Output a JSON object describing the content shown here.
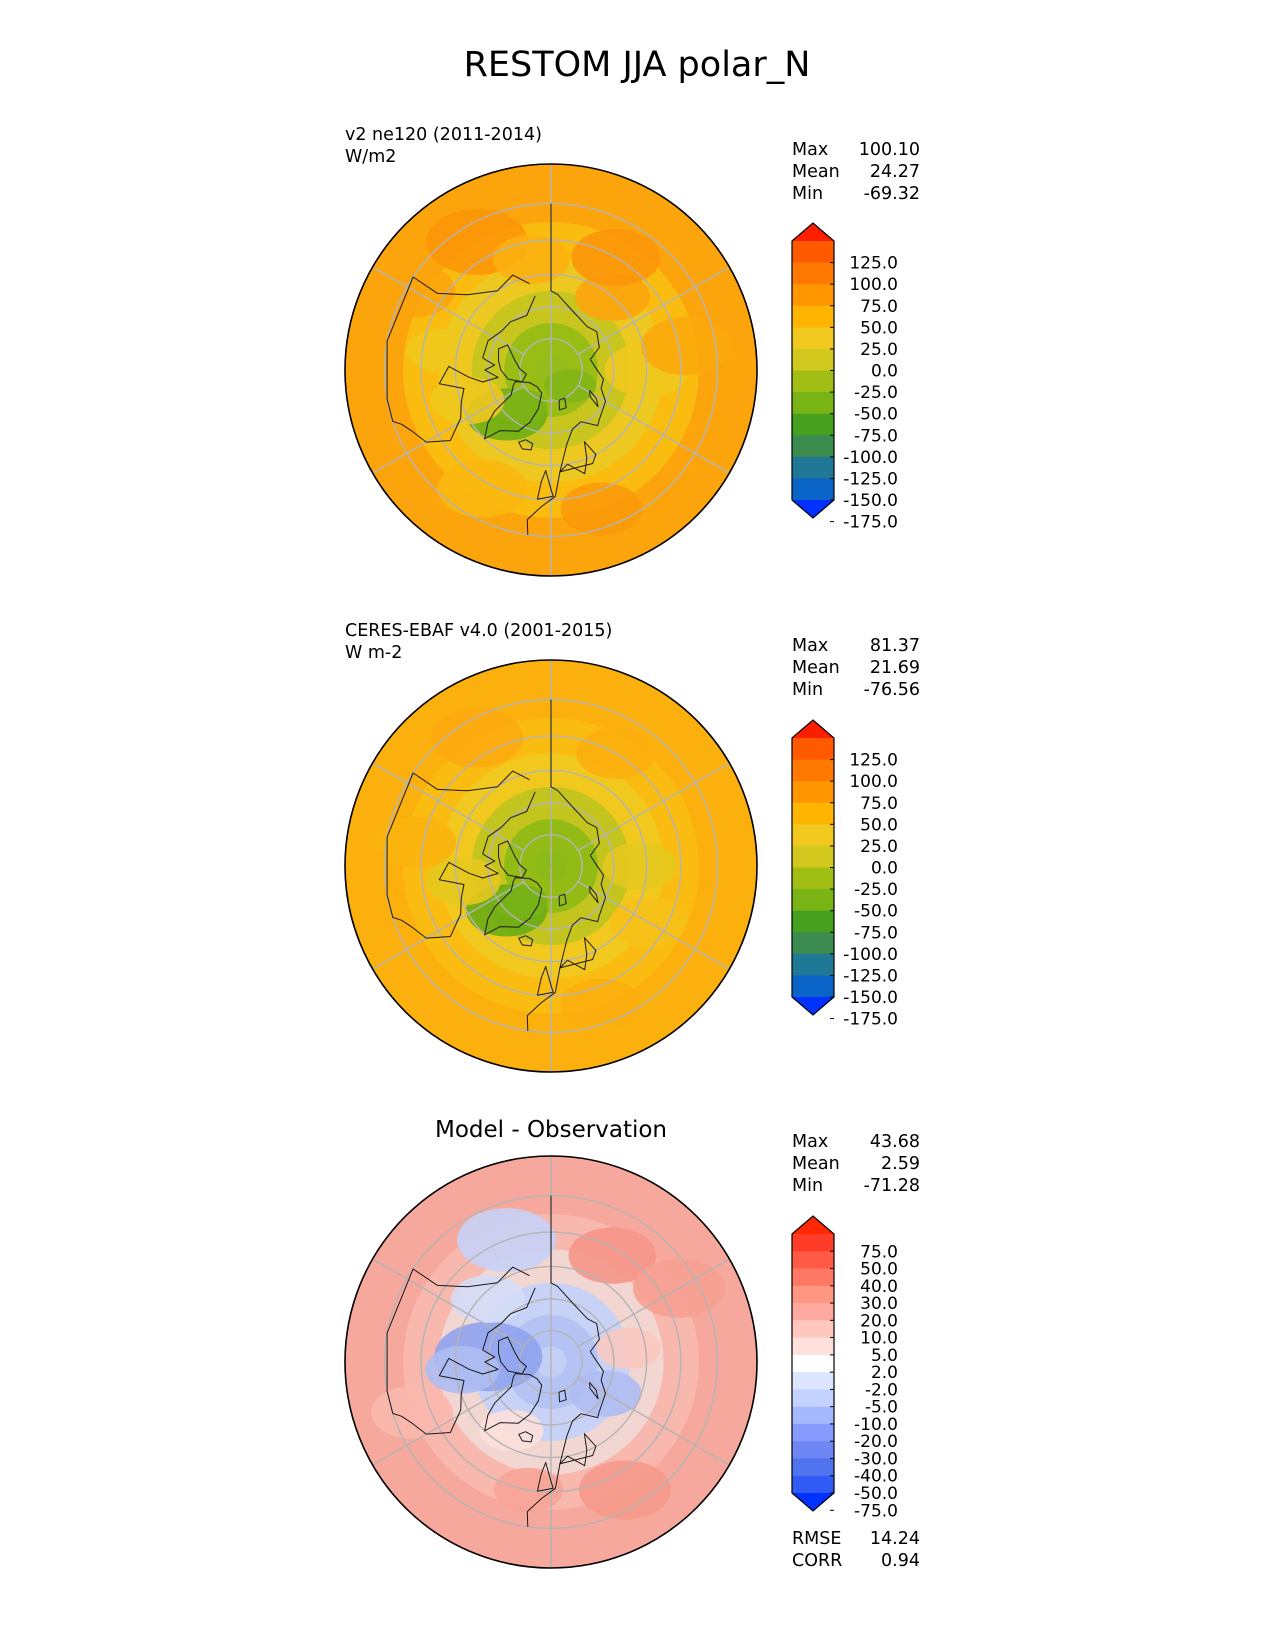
{
  "figure": {
    "title": "RESTOM JJA polar_N"
  },
  "chart_data": [
    {
      "type": "heatmap",
      "projection": "north-polar-stereographic",
      "label_line1": "v2 ne120 (2011-2014)",
      "label_line2": "W/m2",
      "subtitle": "",
      "stats": [
        {
          "name": "Max",
          "value": "100.10"
        },
        {
          "name": "Mean",
          "value": "24.27"
        },
        {
          "name": "Min",
          "value": "-69.32"
        }
      ],
      "bottom_stats": [],
      "colorbar": {
        "ticks": [
          "125.0",
          "100.0",
          "75.0",
          "50.0",
          "25.0",
          "0.0",
          "-25.0",
          "-50.0",
          "-75.0",
          "-100.0",
          "-125.0",
          "-150.0",
          "-175.0"
        ],
        "colors": [
          "#ff1e00",
          "#ff5a00",
          "#ff7800",
          "#ff9600",
          "#ffb400",
          "#f0c81e",
          "#d2c81e",
          "#a0be14",
          "#78b414",
          "#46a01e",
          "#3c8c50",
          "#1e7896",
          "#0a64c8",
          "#0032ff"
        ],
        "extend": "both"
      },
      "field": {
        "pole_color": "#94bc1c",
        "rings": [
          {
            "lat": 80,
            "color": "#9abd16"
          },
          {
            "lat": 70,
            "color": "#c8c61e"
          },
          {
            "lat": 60,
            "color": "#ecc820"
          },
          {
            "lat": 50,
            "color": "#fbbc10"
          },
          {
            "lat": 40,
            "color": "#fca40c"
          }
        ],
        "patches": [
          {
            "lon": -45,
            "lat": 70,
            "size": 9,
            "color": "#6eae14"
          },
          {
            "lon": -40,
            "lat": 75,
            "size": 6,
            "color": "#7db416"
          },
          {
            "lon": 50,
            "lat": 82,
            "size": 6,
            "color": "#82b616"
          },
          {
            "lon": -70,
            "lat": 62,
            "size": 8,
            "color": "#f0c81e"
          },
          {
            "lon": -100,
            "lat": 55,
            "size": 7,
            "color": "#f0c81e"
          },
          {
            "lon": 90,
            "lat": 60,
            "size": 9,
            "color": "#f0c81e"
          },
          {
            "lon": 140,
            "lat": 60,
            "size": 8,
            "color": "#fca40c"
          },
          {
            "lon": 150,
            "lat": 50,
            "size": 9,
            "color": "#fc960a"
          },
          {
            "lon": -150,
            "lat": 45,
            "size": 10,
            "color": "#fc9608"
          },
          {
            "lon": -170,
            "lat": 55,
            "size": 8,
            "color": "#fcb010"
          },
          {
            "lon": -30,
            "lat": 48,
            "size": 9,
            "color": "#fbb810"
          },
          {
            "lon": 20,
            "lat": 45,
            "size": 8,
            "color": "#fc9a0a"
          },
          {
            "lon": 100,
            "lat": 48,
            "size": 9,
            "color": "#fba80c"
          },
          {
            "lon": -120,
            "lat": 42,
            "size": 8,
            "color": "#fca40c"
          }
        ]
      }
    },
    {
      "type": "heatmap",
      "projection": "north-polar-stereographic",
      "label_line1": "CERES-EBAF v4.0 (2001-2015)",
      "label_line2": "W m-2",
      "subtitle": "",
      "stats": [
        {
          "name": "Max",
          "value": "81.37"
        },
        {
          "name": "Mean",
          "value": "21.69"
        },
        {
          "name": "Min",
          "value": "-76.56"
        }
      ],
      "bottom_stats": [],
      "colorbar": {
        "ticks": [
          "125.0",
          "100.0",
          "75.0",
          "50.0",
          "25.0",
          "0.0",
          "-25.0",
          "-50.0",
          "-75.0",
          "-100.0",
          "-125.0",
          "-150.0",
          "-175.0"
        ],
        "colors": [
          "#ff1e00",
          "#ff5a00",
          "#ff7800",
          "#ff9600",
          "#ffb400",
          "#f0c81e",
          "#d2c81e",
          "#a0be14",
          "#78b414",
          "#46a01e",
          "#3c8c50",
          "#1e7896",
          "#0a64c8",
          "#0032ff"
        ],
        "extend": "both"
      },
      "field": {
        "pole_color": "#8cba18",
        "rings": [
          {
            "lat": 80,
            "color": "#92bb16"
          },
          {
            "lat": 70,
            "color": "#c4c41e"
          },
          {
            "lat": 60,
            "color": "#f0c81e"
          },
          {
            "lat": 50,
            "color": "#fbbc12"
          },
          {
            "lat": 40,
            "color": "#fbb00e"
          }
        ],
        "patches": [
          {
            "lon": -45,
            "lat": 70,
            "size": 9,
            "color": "#6aac14"
          },
          {
            "lon": -40,
            "lat": 75,
            "size": 6,
            "color": "#78b216"
          },
          {
            "lon": -80,
            "lat": 62,
            "size": 8,
            "color": "#e6c81e"
          },
          {
            "lon": 90,
            "lat": 62,
            "size": 8,
            "color": "#e6c81e"
          },
          {
            "lon": 150,
            "lat": 50,
            "size": 8,
            "color": "#fcae0e"
          },
          {
            "lon": -150,
            "lat": 45,
            "size": 9,
            "color": "#fcaa0e"
          },
          {
            "lon": 20,
            "lat": 45,
            "size": 8,
            "color": "#fcae0e"
          },
          {
            "lon": -100,
            "lat": 48,
            "size": 8,
            "color": "#fbb40e"
          },
          {
            "lon": 60,
            "lat": 55,
            "size": 8,
            "color": "#f6c018"
          }
        ]
      }
    },
    {
      "type": "heatmap",
      "projection": "north-polar-stereographic",
      "label_line1": "",
      "label_line2": "",
      "subtitle": "Model - Observation",
      "stats": [
        {
          "name": "Max",
          "value": "43.68"
        },
        {
          "name": "Mean",
          "value": "2.59"
        },
        {
          "name": "Min",
          "value": "-71.28"
        }
      ],
      "bottom_stats": [
        {
          "name": "RMSE",
          "value": "14.24"
        },
        {
          "name": "CORR",
          "value": "0.94"
        }
      ],
      "colorbar": {
        "ticks": [
          "75.0",
          "50.0",
          "40.0",
          "30.0",
          "20.0",
          "10.0",
          "5.0",
          "2.0",
          "-2.0",
          "-5.0",
          "-10.0",
          "-20.0",
          "-30.0",
          "-40.0",
          "-50.0",
          "-75.0"
        ],
        "colors": [
          "#ff2800",
          "#ff3c28",
          "#ff5a46",
          "#ff7864",
          "#ff9682",
          "#ffaaa0",
          "#ffc8be",
          "#ffe1dc",
          "#ffffff",
          "#dce6ff",
          "#c3d2ff",
          "#a5b9ff",
          "#879bff",
          "#6e87f5",
          "#5073f0",
          "#325af5",
          "#0032ff"
        ],
        "extend": "both"
      },
      "field": {
        "pole_color": "#c4cff5",
        "rings": [
          {
            "lat": 80,
            "color": "#b4c3f3"
          },
          {
            "lat": 70,
            "color": "#c8d2f6"
          },
          {
            "lat": 60,
            "color": "#f2d6d2"
          },
          {
            "lat": 50,
            "color": "#f8b8ae"
          },
          {
            "lat": 40,
            "color": "#f7a89c"
          }
        ],
        "patches": [
          {
            "lon": -95,
            "lat": 70,
            "size": 12,
            "color": "#8fa3ef"
          },
          {
            "lon": -85,
            "lat": 62,
            "size": 8,
            "color": "#aebcf2"
          },
          {
            "lon": 60,
            "lat": 70,
            "size": 8,
            "color": "#aebdf2"
          },
          {
            "lon": -30,
            "lat": 65,
            "size": 7,
            "color": "#fbe0dc"
          },
          {
            "lon": -160,
            "lat": 50,
            "size": 10,
            "color": "#c6d2f6"
          },
          {
            "lon": -135,
            "lat": 62,
            "size": 8,
            "color": "#d4ddf7"
          },
          {
            "lon": 150,
            "lat": 52,
            "size": 9,
            "color": "#f59688"
          },
          {
            "lon": 120,
            "lat": 45,
            "size": 9,
            "color": "#f6a092"
          },
          {
            "lon": 30,
            "lat": 45,
            "size": 9,
            "color": "#f59a8c"
          },
          {
            "lon": -70,
            "lat": 45,
            "size": 8,
            "color": "#f9b8ae"
          },
          {
            "lon": 100,
            "lat": 65,
            "size": 7,
            "color": "#f9c8c0"
          },
          {
            "lon": -10,
            "lat": 50,
            "size": 7,
            "color": "#f7a498"
          }
        ]
      }
    }
  ]
}
